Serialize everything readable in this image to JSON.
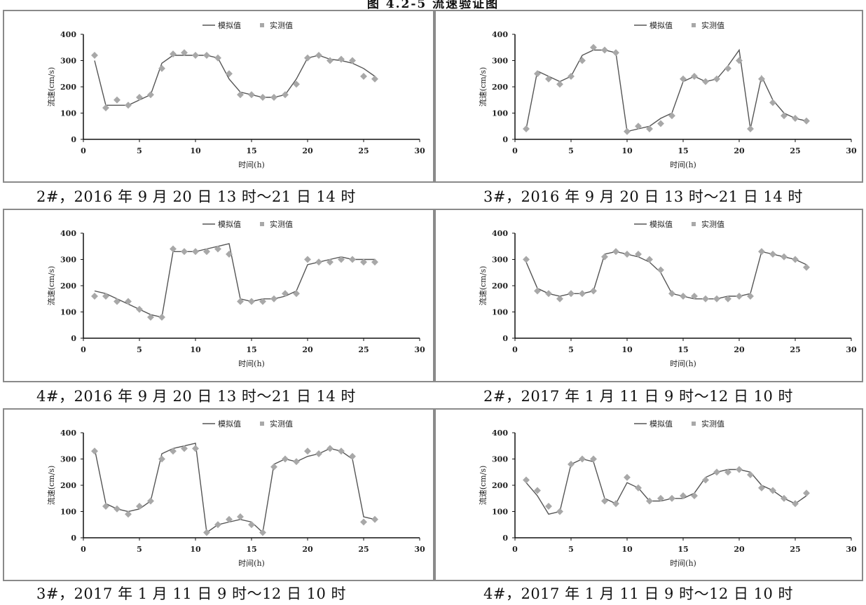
{
  "header": {
    "title": "图 4.2-5  流速验证图"
  },
  "colors": {
    "model_line": "#555555",
    "measured_point": "#a8a8a8",
    "axis": "#111111",
    "border": "#8a8a8a"
  },
  "legend": {
    "model": "模拟值",
    "measured": "实测值"
  },
  "chart_data": [
    {
      "type": "line",
      "caption": "2#，2016 年 9 月 20 日 13 时～21 日 14 时",
      "xlabel": "时间(h)",
      "ylabel": "流速(cm/s)",
      "xlim": [
        0,
        30
      ],
      "ylim": [
        0,
        400
      ],
      "xticks": [
        "0",
        "5",
        "10",
        "15",
        "20",
        "25",
        "30"
      ],
      "yticks": [
        "0",
        "100",
        "200",
        "300",
        "400"
      ],
      "series": [
        {
          "name": "模拟值",
          "x": [
            1,
            2,
            3,
            4,
            5,
            6,
            7,
            8,
            9,
            10,
            11,
            12,
            13,
            14,
            15,
            16,
            17,
            18,
            19,
            20,
            21,
            22,
            23,
            24,
            25,
            26
          ],
          "y": [
            300,
            130,
            130,
            130,
            150,
            170,
            290,
            320,
            320,
            320,
            320,
            310,
            230,
            180,
            170,
            160,
            160,
            170,
            230,
            310,
            320,
            305,
            300,
            290,
            270,
            240
          ]
        },
        {
          "name": "实测值",
          "x": [
            1,
            2,
            3,
            4,
            5,
            6,
            7,
            8,
            9,
            10,
            11,
            12,
            13,
            14,
            15,
            16,
            17,
            18,
            19,
            20,
            21,
            22,
            23,
            24,
            25,
            26
          ],
          "y": [
            320,
            120,
            150,
            130,
            160,
            170,
            270,
            325,
            330,
            320,
            320,
            310,
            250,
            170,
            170,
            160,
            160,
            170,
            210,
            310,
            320,
            300,
            305,
            300,
            240,
            230
          ]
        }
      ]
    },
    {
      "type": "line",
      "caption": "3#，2016 年 9 月 20 日 13 时～21 日 14 时",
      "xlabel": "时间(h)",
      "ylabel": "流速(cm/s)",
      "xlim": [
        0,
        30
      ],
      "ylim": [
        0,
        400
      ],
      "xticks": [
        "0",
        "5",
        "10",
        "15",
        "20",
        "25",
        "30"
      ],
      "yticks": [
        "0",
        "100",
        "200",
        "300",
        "400"
      ],
      "series": [
        {
          "name": "模拟值",
          "x": [
            1,
            2,
            3,
            4,
            5,
            6,
            7,
            8,
            9,
            10,
            11,
            12,
            13,
            14,
            15,
            16,
            17,
            18,
            19,
            20,
            21,
            22,
            23,
            24,
            25,
            26
          ],
          "y": [
            40,
            260,
            240,
            220,
            240,
            320,
            340,
            340,
            330,
            30,
            40,
            50,
            80,
            100,
            220,
            240,
            220,
            230,
            280,
            340,
            40,
            240,
            150,
            100,
            80,
            70
          ]
        },
        {
          "name": "实测值",
          "x": [
            1,
            2,
            3,
            4,
            5,
            6,
            7,
            8,
            9,
            10,
            11,
            12,
            13,
            14,
            15,
            16,
            17,
            18,
            19,
            20,
            21,
            22,
            23,
            24,
            25,
            26
          ],
          "y": [
            40,
            250,
            230,
            210,
            240,
            300,
            350,
            340,
            330,
            30,
            50,
            40,
            60,
            90,
            230,
            240,
            220,
            230,
            270,
            300,
            40,
            230,
            140,
            90,
            80,
            70
          ]
        }
      ]
    },
    {
      "type": "line",
      "caption": "4#，2016 年 9 月 20 日 13 时～21 日 14 时",
      "xlabel": "时间(h)",
      "ylabel": "流速(cm/s)",
      "xlim": [
        0,
        30
      ],
      "ylim": [
        0,
        400
      ],
      "xticks": [
        "0",
        "5",
        "10",
        "15",
        "20",
        "25",
        "30"
      ],
      "yticks": [
        "0",
        "100",
        "200",
        "300",
        "400"
      ],
      "series": [
        {
          "name": "模拟值",
          "x": [
            1,
            2,
            3,
            4,
            5,
            6,
            7,
            8,
            9,
            10,
            11,
            12,
            13,
            14,
            15,
            16,
            17,
            18,
            19,
            20,
            21,
            22,
            23,
            24,
            25,
            26
          ],
          "y": [
            180,
            170,
            150,
            130,
            110,
            90,
            80,
            330,
            330,
            330,
            340,
            350,
            360,
            150,
            140,
            150,
            150,
            160,
            180,
            280,
            290,
            300,
            310,
            300,
            300,
            300
          ]
        },
        {
          "name": "实测值",
          "x": [
            1,
            2,
            3,
            4,
            5,
            6,
            7,
            8,
            9,
            10,
            11,
            12,
            13,
            14,
            15,
            16,
            17,
            18,
            19,
            20,
            21,
            22,
            23,
            24,
            25,
            26
          ],
          "y": [
            160,
            160,
            140,
            140,
            110,
            80,
            80,
            340,
            330,
            330,
            330,
            340,
            320,
            140,
            140,
            140,
            150,
            170,
            170,
            300,
            290,
            290,
            300,
            300,
            290,
            290
          ]
        }
      ]
    },
    {
      "type": "line",
      "caption": "2#，2017 年 1 月 11 日 9 时～12 日 10 时",
      "xlabel": "时间(h)",
      "ylabel": "流速(cm/s)",
      "xlim": [
        0,
        30
      ],
      "ylim": [
        0,
        400
      ],
      "xticks": [
        "0",
        "5",
        "10",
        "15",
        "20",
        "25",
        "30"
      ],
      "yticks": [
        "0",
        "100",
        "200",
        "300",
        "400"
      ],
      "series": [
        {
          "name": "模拟值",
          "x": [
            1,
            2,
            3,
            4,
            5,
            6,
            7,
            8,
            9,
            10,
            11,
            12,
            13,
            14,
            15,
            16,
            17,
            18,
            19,
            20,
            21,
            22,
            23,
            24,
            25,
            26
          ],
          "y": [
            290,
            190,
            170,
            160,
            170,
            170,
            180,
            320,
            330,
            320,
            310,
            290,
            250,
            170,
            160,
            150,
            150,
            150,
            160,
            160,
            170,
            330,
            320,
            310,
            300,
            280
          ]
        },
        {
          "name": "实测值",
          "x": [
            1,
            2,
            3,
            4,
            5,
            6,
            7,
            8,
            9,
            10,
            11,
            12,
            13,
            14,
            15,
            16,
            17,
            18,
            19,
            20,
            21,
            22,
            23,
            24,
            25,
            26
          ],
          "y": [
            300,
            180,
            170,
            150,
            170,
            170,
            180,
            310,
            330,
            320,
            320,
            300,
            260,
            170,
            160,
            160,
            150,
            150,
            150,
            160,
            160,
            330,
            320,
            310,
            300,
            270
          ]
        }
      ]
    },
    {
      "type": "line",
      "caption": "3#，2017 年 1 月 11 日 9 时～12 日 10 时",
      "xlabel": "时间(h)",
      "ylabel": "流速(cm/s)",
      "xlim": [
        0,
        30
      ],
      "ylim": [
        0,
        400
      ],
      "xticks": [
        "0",
        "5",
        "10",
        "15",
        "20",
        "25",
        "30"
      ],
      "yticks": [
        "0",
        "100",
        "200",
        "300",
        "400"
      ],
      "series": [
        {
          "name": "模拟值",
          "x": [
            1,
            2,
            3,
            4,
            5,
            6,
            7,
            8,
            9,
            10,
            11,
            12,
            13,
            14,
            15,
            16,
            17,
            18,
            19,
            20,
            21,
            22,
            23,
            24,
            25,
            26
          ],
          "y": [
            340,
            130,
            110,
            100,
            110,
            140,
            320,
            340,
            350,
            360,
            20,
            50,
            60,
            70,
            60,
            20,
            280,
            300,
            290,
            310,
            320,
            340,
            330,
            300,
            80,
            70
          ]
        },
        {
          "name": "实测值",
          "x": [
            1,
            2,
            3,
            4,
            5,
            6,
            7,
            8,
            9,
            10,
            11,
            12,
            13,
            14,
            15,
            16,
            17,
            18,
            19,
            20,
            21,
            22,
            23,
            24,
            25,
            26
          ],
          "y": [
            330,
            120,
            110,
            90,
            120,
            140,
            300,
            330,
            340,
            340,
            20,
            50,
            70,
            80,
            50,
            20,
            270,
            300,
            290,
            330,
            320,
            340,
            330,
            310,
            60,
            70
          ]
        }
      ]
    },
    {
      "type": "line",
      "caption": "4#，2017 年 1 月 11 日 9 时～12 日 10 时",
      "xlabel": "时间(h)",
      "ylabel": "流速(cm/s)",
      "xlim": [
        0,
        30
      ],
      "ylim": [
        0,
        400
      ],
      "xticks": [
        "0",
        "5",
        "10",
        "15",
        "20",
        "25",
        "30"
      ],
      "yticks": [
        "0",
        "100",
        "200",
        "300",
        "400"
      ],
      "series": [
        {
          "name": "模拟值",
          "x": [
            1,
            2,
            3,
            4,
            5,
            6,
            7,
            8,
            9,
            10,
            11,
            12,
            13,
            14,
            15,
            16,
            17,
            18,
            19,
            20,
            21,
            22,
            23,
            24,
            25,
            26
          ],
          "y": [
            210,
            160,
            90,
            100,
            280,
            300,
            290,
            150,
            130,
            210,
            190,
            140,
            140,
            150,
            150,
            170,
            230,
            250,
            260,
            260,
            250,
            200,
            180,
            150,
            130,
            160
          ]
        },
        {
          "name": "实测值",
          "x": [
            1,
            2,
            3,
            4,
            5,
            6,
            7,
            8,
            9,
            10,
            11,
            12,
            13,
            14,
            15,
            16,
            17,
            18,
            19,
            20,
            21,
            22,
            23,
            24,
            25,
            26
          ],
          "y": [
            220,
            180,
            120,
            100,
            280,
            300,
            300,
            140,
            130,
            230,
            190,
            140,
            150,
            150,
            160,
            160,
            220,
            250,
            250,
            260,
            240,
            190,
            180,
            150,
            130,
            170
          ]
        }
      ]
    }
  ]
}
